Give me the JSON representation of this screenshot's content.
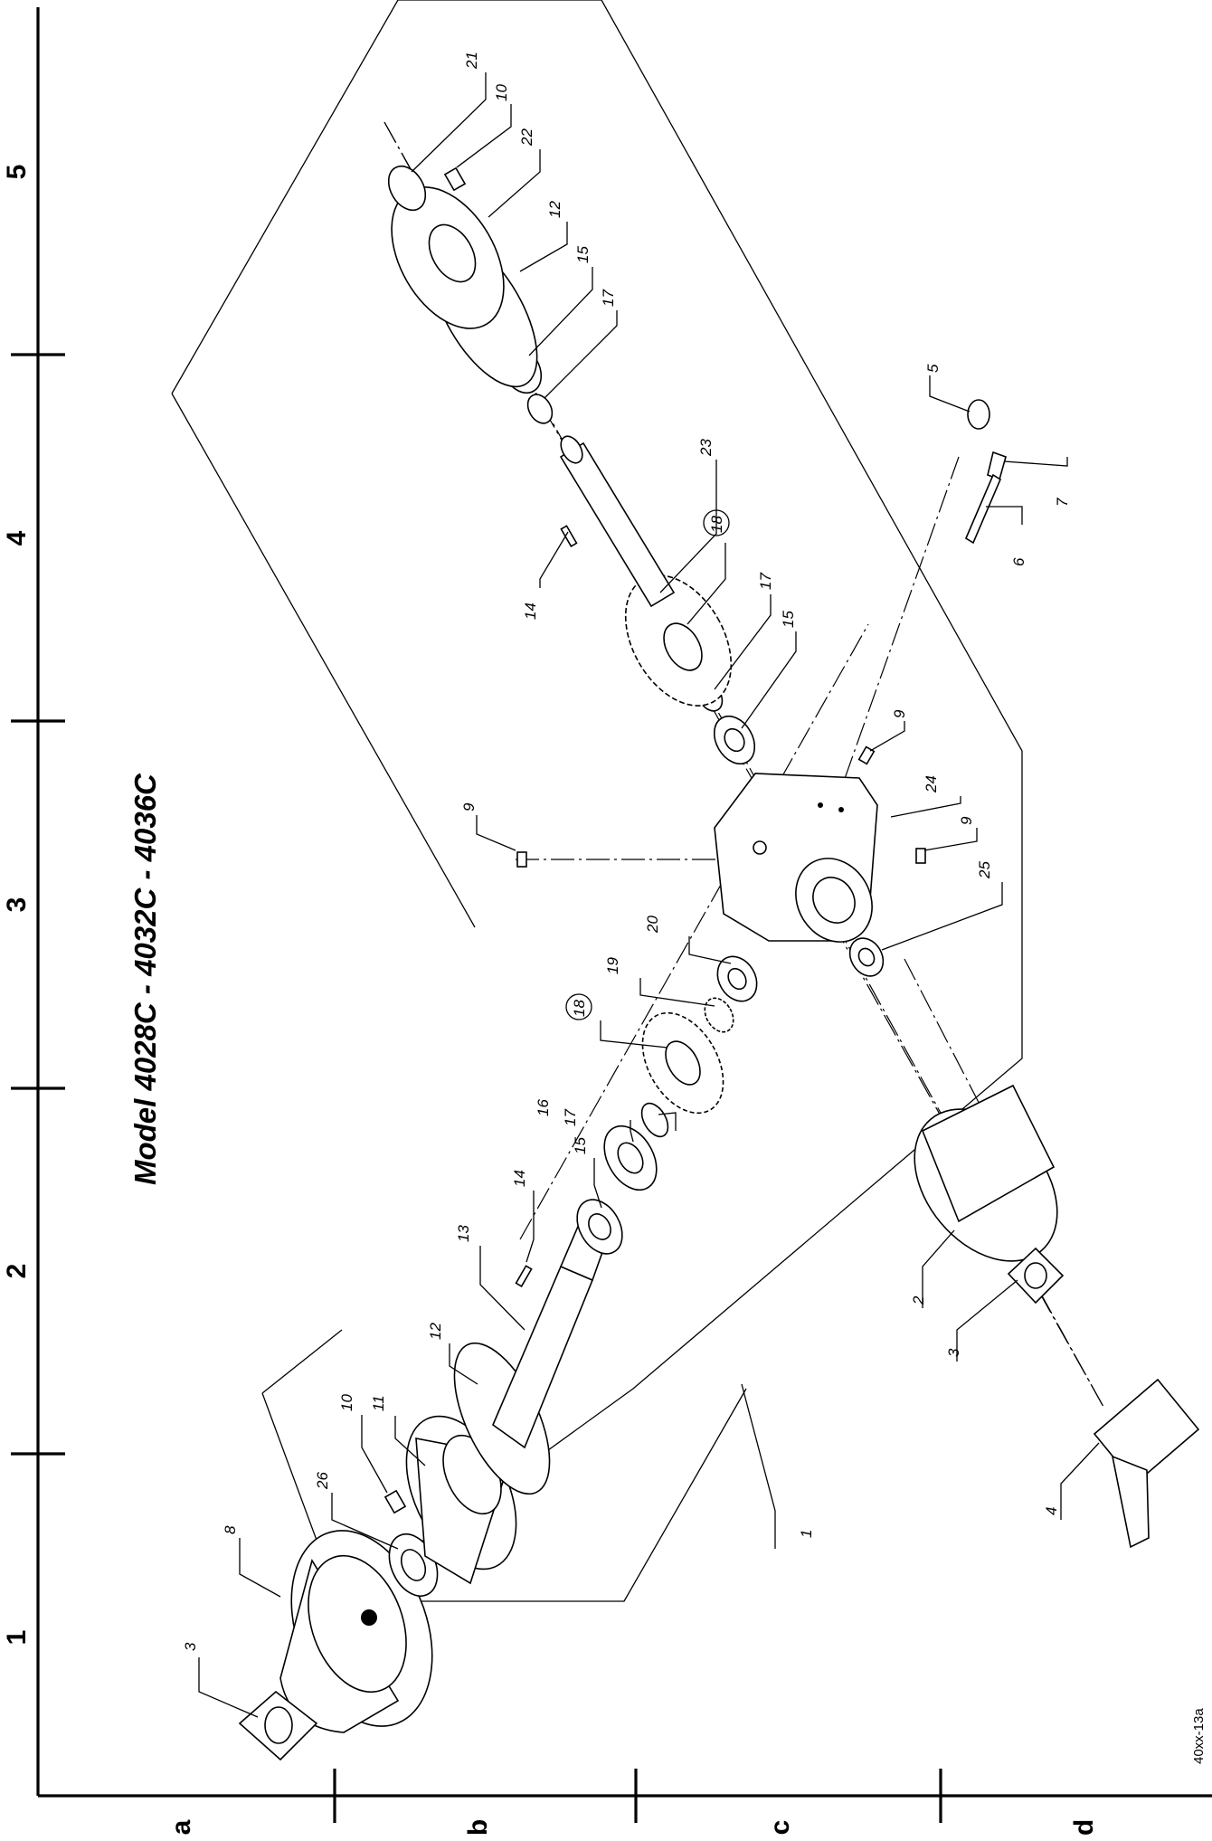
{
  "title": "Model 4028C - 4032C - 4036C",
  "reference_code": "40xx-13a",
  "grid": {
    "columns": [
      "1",
      "2",
      "3",
      "4",
      "5"
    ],
    "rows": [
      "a",
      "b",
      "c",
      "d"
    ]
  },
  "callouts": [
    {
      "number": "1"
    },
    {
      "number": "2"
    },
    {
      "number": "3",
      "note": "bottom"
    },
    {
      "number": "3",
      "note": "top"
    },
    {
      "number": "4"
    },
    {
      "number": "5"
    },
    {
      "number": "6"
    },
    {
      "number": "7"
    },
    {
      "number": "8"
    },
    {
      "number": "9",
      "note": "left"
    },
    {
      "number": "9",
      "note": "upper-right"
    },
    {
      "number": "9",
      "note": "lower-right"
    },
    {
      "number": "10",
      "note": "left"
    },
    {
      "number": "10",
      "note": "right"
    },
    {
      "number": "11"
    },
    {
      "number": "12",
      "note": "left"
    },
    {
      "number": "12",
      "note": "right"
    },
    {
      "number": "13"
    },
    {
      "number": "14",
      "note": "left"
    },
    {
      "number": "14",
      "note": "right"
    },
    {
      "number": "15",
      "note": "left"
    },
    {
      "number": "15",
      "note": "middle"
    },
    {
      "number": "15",
      "note": "right"
    },
    {
      "number": "16"
    },
    {
      "number": "17",
      "note": "left"
    },
    {
      "number": "17",
      "note": "middle"
    },
    {
      "number": "17",
      "note": "right"
    },
    {
      "number": "18",
      "note": "left"
    },
    {
      "number": "18",
      "note": "right"
    },
    {
      "number": "19"
    },
    {
      "number": "20"
    },
    {
      "number": "21"
    },
    {
      "number": "22"
    },
    {
      "number": "23"
    },
    {
      "number": "24"
    },
    {
      "number": "25"
    },
    {
      "number": "26"
    }
  ]
}
